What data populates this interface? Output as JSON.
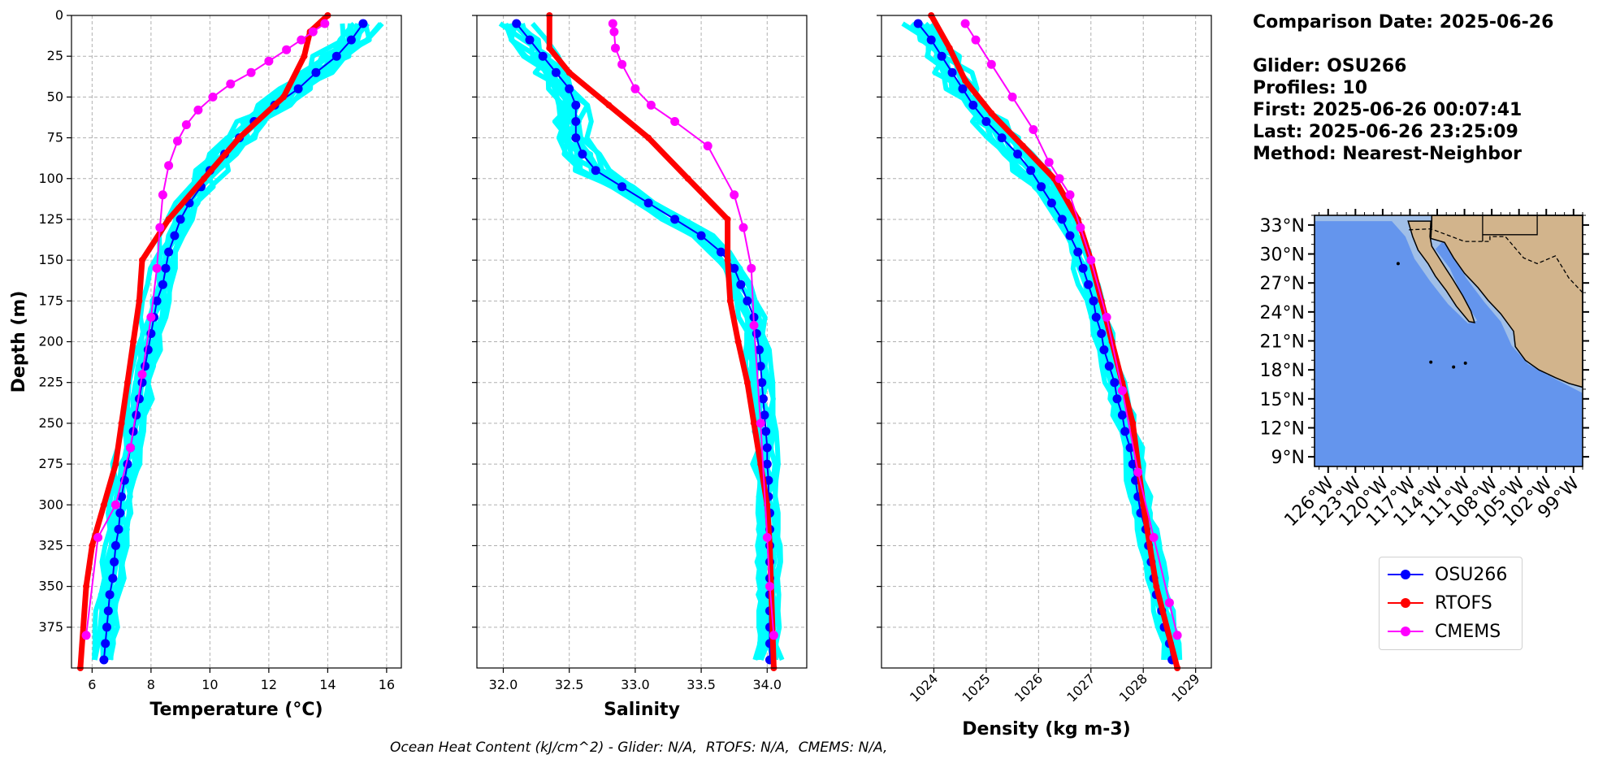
{
  "info": {
    "comparison_date": "Comparison Date: 2025-06-26",
    "glider": "Glider: OSU266",
    "profiles": "Profiles: 10",
    "first": "First: 2025-06-26 00:07:41",
    "last": "Last: 2025-06-26 23:25:09",
    "method": "Method: Nearest-Neighbor"
  },
  "footnote": "Ocean Heat Content (kJ/cm^2) - Glider: N/A,  RTOFS: N/A,  CMEMS: N/A,",
  "colors": {
    "glider": "#0000ff",
    "rtofs": "#ff0000",
    "cmems": "#ff00ff",
    "raw_profiles": "#00ffff",
    "ocean": "#6495ed",
    "land": "#d2b48c",
    "shelf": "#a0bfe8"
  },
  "legend": [
    {
      "label": "OSU266",
      "color": "#0000ff"
    },
    {
      "label": "RTOFS",
      "color": "#ff0000"
    },
    {
      "label": "CMEMS",
      "color": "#ff00ff"
    }
  ],
  "chart_data": [
    {
      "type": "line",
      "xlabel": "Temperature (°C)",
      "ylabel": "Depth (m)",
      "xlim": [
        5.3,
        16.5
      ],
      "ylim": [
        400,
        0
      ],
      "xticks": [
        6,
        8,
        10,
        12,
        14,
        16
      ],
      "yticks": [
        0,
        25,
        50,
        75,
        100,
        125,
        150,
        175,
        200,
        225,
        250,
        275,
        300,
        325,
        350,
        375
      ],
      "grid": true,
      "series": [
        {
          "name": "OSU266",
          "x": [
            15.2,
            14.8,
            14.3,
            13.6,
            13.0,
            12.2,
            11.5,
            11.0,
            10.5,
            10.0,
            9.7,
            9.3,
            9.0,
            8.8,
            8.6,
            8.5,
            8.4,
            8.2,
            8.1,
            8.0,
            7.9,
            7.8,
            7.7,
            7.6,
            7.5,
            7.4,
            7.3,
            7.2,
            7.1,
            7.0,
            6.95,
            6.9,
            6.8,
            6.75,
            6.7,
            6.6,
            6.55,
            6.5,
            6.45,
            6.4
          ],
          "y": [
            5,
            15,
            25,
            35,
            45,
            55,
            65,
            75,
            85,
            95,
            105,
            115,
            125,
            135,
            145,
            155,
            165,
            175,
            185,
            195,
            205,
            215,
            225,
            235,
            245,
            255,
            265,
            275,
            285,
            295,
            305,
            315,
            325,
            335,
            345,
            355,
            365,
            375,
            385,
            395
          ]
        },
        {
          "name": "RTOFS",
          "x": [
            14.0,
            13.4,
            13.2,
            12.5,
            11.0,
            9.8,
            8.6,
            7.7,
            7.6,
            7.4,
            7.2,
            7.0,
            6.8,
            6.4,
            6.0,
            5.8,
            5.6
          ],
          "y": [
            0,
            10,
            25,
            50,
            75,
            100,
            125,
            150,
            175,
            200,
            225,
            250,
            275,
            300,
            325,
            350,
            400
          ]
        },
        {
          "name": "CMEMS",
          "x": [
            13.9,
            13.5,
            13.1,
            12.6,
            12.0,
            11.4,
            10.7,
            10.1,
            9.6,
            9.2,
            8.9,
            8.6,
            8.4,
            8.3,
            8.2,
            8.0,
            7.7,
            7.3,
            6.8,
            6.2,
            5.8
          ],
          "y": [
            5,
            10,
            15,
            21,
            28,
            35,
            42,
            50,
            58,
            67,
            77,
            92,
            110,
            130,
            155,
            185,
            220,
            265,
            300,
            320,
            380
          ]
        }
      ]
    },
    {
      "type": "line",
      "xlabel": "Salinity",
      "xlim": [
        31.8,
        34.3
      ],
      "ylim": [
        400,
        0
      ],
      "xticks": [
        32.0,
        32.5,
        33.0,
        33.5,
        34.0
      ],
      "grid": true,
      "series": [
        {
          "name": "OSU266",
          "x": [
            32.1,
            32.2,
            32.3,
            32.4,
            32.5,
            32.55,
            32.55,
            32.55,
            32.6,
            32.7,
            32.9,
            33.1,
            33.3,
            33.5,
            33.65,
            33.75,
            33.8,
            33.85,
            33.9,
            33.92,
            33.94,
            33.95,
            33.96,
            33.97,
            33.98,
            33.99,
            34.0,
            34.0,
            34.01,
            34.01,
            34.02,
            34.02,
            34.02,
            34.02,
            34.02,
            34.02,
            34.02,
            34.02,
            34.02,
            34.02
          ],
          "y": [
            5,
            15,
            25,
            35,
            45,
            55,
            65,
            75,
            85,
            95,
            105,
            115,
            125,
            135,
            145,
            155,
            165,
            175,
            185,
            195,
            205,
            215,
            225,
            235,
            245,
            255,
            265,
            275,
            285,
            295,
            305,
            315,
            325,
            335,
            345,
            355,
            365,
            375,
            385,
            395
          ]
        },
        {
          "name": "RTOFS",
          "x": [
            32.35,
            32.35,
            32.5,
            32.8,
            33.1,
            33.4,
            33.7,
            33.7,
            33.72,
            33.78,
            33.85,
            33.9,
            33.95,
            34.0,
            34.02,
            34.05
          ],
          "y": [
            0,
            20,
            35,
            55,
            75,
            100,
            125,
            150,
            175,
            200,
            225,
            250,
            275,
            300,
            325,
            400
          ]
        },
        {
          "name": "CMEMS",
          "x": [
            32.83,
            32.84,
            32.85,
            32.9,
            33.0,
            33.12,
            33.3,
            33.55,
            33.75,
            33.82,
            33.88,
            33.9,
            33.95,
            34.0,
            34.02,
            34.05
          ],
          "y": [
            5,
            10,
            20,
            30,
            45,
            55,
            65,
            80,
            110,
            130,
            155,
            190,
            250,
            320,
            350,
            380
          ]
        }
      ]
    },
    {
      "type": "line",
      "xlabel": "Density (kg m-3)",
      "xlim": [
        1023.0,
        1029.3
      ],
      "ylim": [
        400,
        0
      ],
      "xticks": [
        1024,
        1025,
        1026,
        1027,
        1028,
        1029
      ],
      "grid": true,
      "series": [
        {
          "name": "OSU266",
          "x": [
            1023.7,
            1023.95,
            1024.15,
            1024.35,
            1024.55,
            1024.75,
            1025.0,
            1025.3,
            1025.6,
            1025.85,
            1026.05,
            1026.25,
            1026.45,
            1026.6,
            1026.75,
            1026.85,
            1026.95,
            1027.05,
            1027.1,
            1027.2,
            1027.25,
            1027.35,
            1027.45,
            1027.5,
            1027.6,
            1027.65,
            1027.75,
            1027.8,
            1027.85,
            1027.9,
            1027.95,
            1028.05,
            1028.1,
            1028.15,
            1028.2,
            1028.25,
            1028.35,
            1028.4,
            1028.5,
            1028.55
          ],
          "y": [
            5,
            15,
            25,
            35,
            45,
            55,
            65,
            75,
            85,
            95,
            105,
            115,
            125,
            135,
            145,
            155,
            165,
            175,
            185,
            195,
            205,
            215,
            225,
            235,
            245,
            255,
            265,
            275,
            285,
            295,
            305,
            315,
            325,
            335,
            345,
            355,
            365,
            375,
            385,
            395
          ]
        },
        {
          "name": "RTOFS",
          "x": [
            1023.95,
            1024.3,
            1024.6,
            1025.1,
            1025.7,
            1026.3,
            1026.75,
            1027.0,
            1027.2,
            1027.4,
            1027.6,
            1027.8,
            1028.0,
            1028.25,
            1028.65
          ],
          "y": [
            0,
            20,
            40,
            60,
            80,
            100,
            125,
            150,
            175,
            200,
            225,
            250,
            300,
            350,
            400
          ]
        },
        {
          "name": "CMEMS",
          "x": [
            1024.6,
            1024.8,
            1025.1,
            1025.5,
            1025.9,
            1026.2,
            1026.4,
            1026.6,
            1026.8,
            1027.0,
            1027.3,
            1027.6,
            1027.9,
            1028.2,
            1028.5,
            1028.65
          ],
          "y": [
            5,
            15,
            30,
            50,
            70,
            90,
            100,
            110,
            130,
            150,
            185,
            230,
            280,
            320,
            360,
            380
          ]
        }
      ]
    },
    {
      "type": "map",
      "lat_ticks": [
        "33°N",
        "30°N",
        "27°N",
        "24°N",
        "21°N",
        "18°N",
        "15°N",
        "12°N",
        "9°N"
      ],
      "lon_ticks": [
        "126°W",
        "123°W",
        "120°W",
        "117°W",
        "114°W",
        "111°W",
        "108°W",
        "105°W",
        "102°W",
        "99°W"
      ]
    }
  ]
}
